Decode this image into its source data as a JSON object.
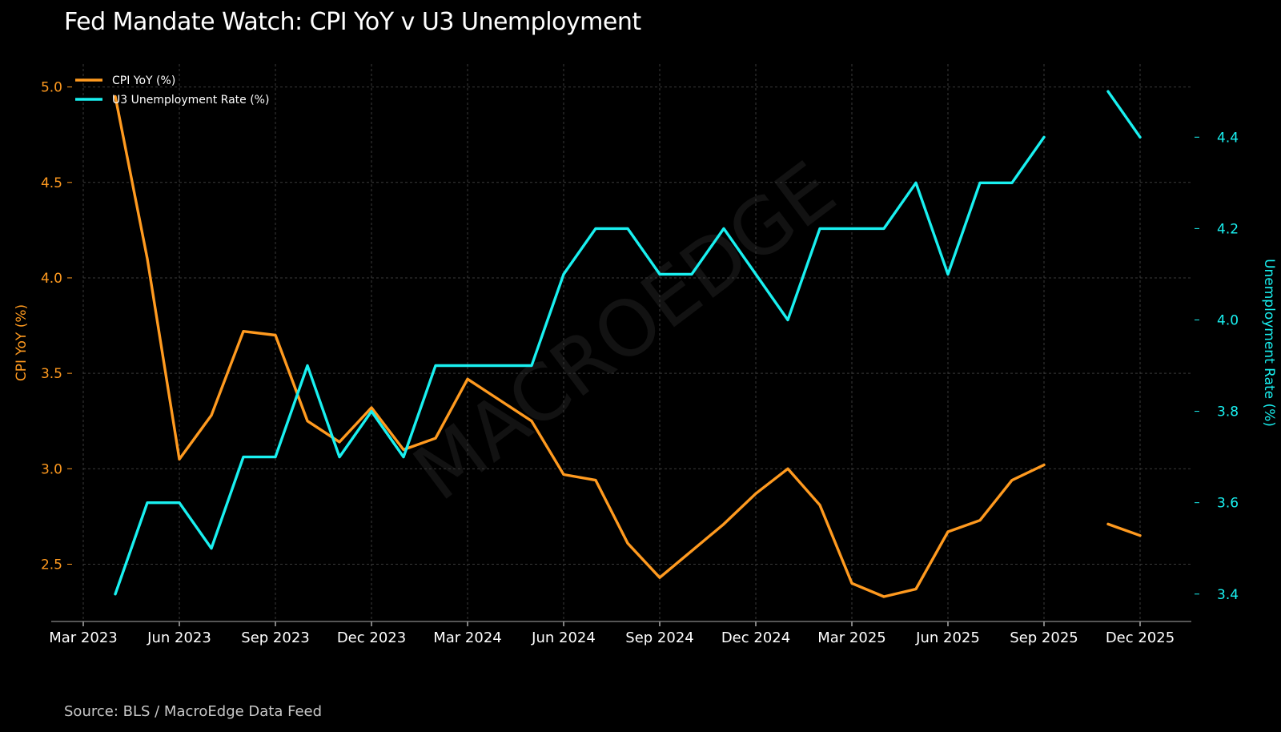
{
  "title": "Fed Mandate Watch: CPI YoY v U3 Unemployment",
  "source": "Source: BLS / MacroEdge Data Feed",
  "watermark": "MACROEDGE",
  "colors": {
    "background": "#000000",
    "cpi": "#ff9a1f",
    "u3": "#19f0f0",
    "grid": "#3a3a3a",
    "axis_text": "#ffffff"
  },
  "chart_data": {
    "type": "line",
    "x_ticks": [
      "Mar 2023",
      "Jun 2023",
      "Sep 2023",
      "Dec 2023",
      "Mar 2024",
      "Jun 2024",
      "Sep 2024",
      "Dec 2024",
      "Mar 2025",
      "Jun 2025",
      "Sep 2025",
      "Dec 2025"
    ],
    "x_range": [
      "2023-03",
      "2025-12"
    ],
    "left_axis": {
      "label": "CPI YoY (%)",
      "ylim": [
        2.2,
        5.12
      ],
      "ticks": [
        "2.5",
        "3.0",
        "3.5",
        "4.0",
        "4.5",
        "5.0"
      ],
      "tick_values": [
        2.5,
        3.0,
        3.5,
        4.0,
        4.5,
        5.0
      ]
    },
    "right_axis": {
      "label": "Unemployment Rate (%)",
      "ylim": [
        3.34,
        4.56
      ],
      "ticks": [
        "3.4",
        "3.6",
        "3.8",
        "4.0",
        "4.2",
        "4.4"
      ],
      "tick_values": [
        3.4,
        3.6,
        3.8,
        4.0,
        4.2,
        4.4
      ]
    },
    "legend_position": "top-left",
    "grid": true,
    "series": [
      {
        "name": "CPI YoY (%)",
        "axis": "left",
        "x": [
          "2023-04",
          "2023-05",
          "2023-06",
          "2023-07",
          "2023-08",
          "2023-09",
          "2023-10",
          "2023-11",
          "2023-12",
          "2024-01",
          "2024-02",
          "2024-03",
          "2024-04",
          "2024-05",
          "2024-06",
          "2024-07",
          "2024-08",
          "2024-09",
          "2024-10",
          "2024-11",
          "2024-12",
          "2025-01",
          "2025-02",
          "2025-03",
          "2025-04",
          "2025-05",
          "2025-06",
          "2025-07",
          "2025-08",
          "2025-09",
          "2025-10",
          "2025-11",
          "2025-12"
        ],
        "values": [
          4.95,
          4.1,
          3.05,
          3.28,
          3.72,
          3.7,
          3.25,
          3.14,
          3.32,
          3.1,
          3.16,
          3.47,
          3.36,
          3.25,
          2.97,
          2.94,
          2.61,
          2.43,
          2.57,
          2.71,
          2.87,
          3.0,
          2.81,
          2.4,
          2.33,
          2.37,
          2.67,
          2.73,
          2.94,
          3.02,
          null,
          2.71,
          2.65
        ]
      },
      {
        "name": "U3 Unemployment Rate (%)",
        "axis": "right",
        "x": [
          "2023-04",
          "2023-05",
          "2023-06",
          "2023-07",
          "2023-08",
          "2023-09",
          "2023-10",
          "2023-11",
          "2023-12",
          "2024-01",
          "2024-02",
          "2024-03",
          "2024-04",
          "2024-05",
          "2024-06",
          "2024-07",
          "2024-08",
          "2024-09",
          "2024-10",
          "2024-11",
          "2024-12",
          "2025-01",
          "2025-02",
          "2025-03",
          "2025-04",
          "2025-05",
          "2025-06",
          "2025-07",
          "2025-08",
          "2025-09",
          "2025-10",
          "2025-11",
          "2025-12"
        ],
        "values": [
          3.4,
          3.6,
          3.6,
          3.5,
          3.7,
          3.7,
          3.9,
          3.7,
          3.8,
          3.7,
          3.9,
          3.9,
          3.9,
          3.9,
          4.1,
          4.2,
          4.2,
          4.1,
          4.1,
          4.2,
          4.1,
          4.0,
          4.2,
          4.2,
          4.2,
          4.3,
          4.1,
          4.3,
          4.3,
          4.4,
          null,
          4.5,
          4.4
        ]
      }
    ]
  }
}
